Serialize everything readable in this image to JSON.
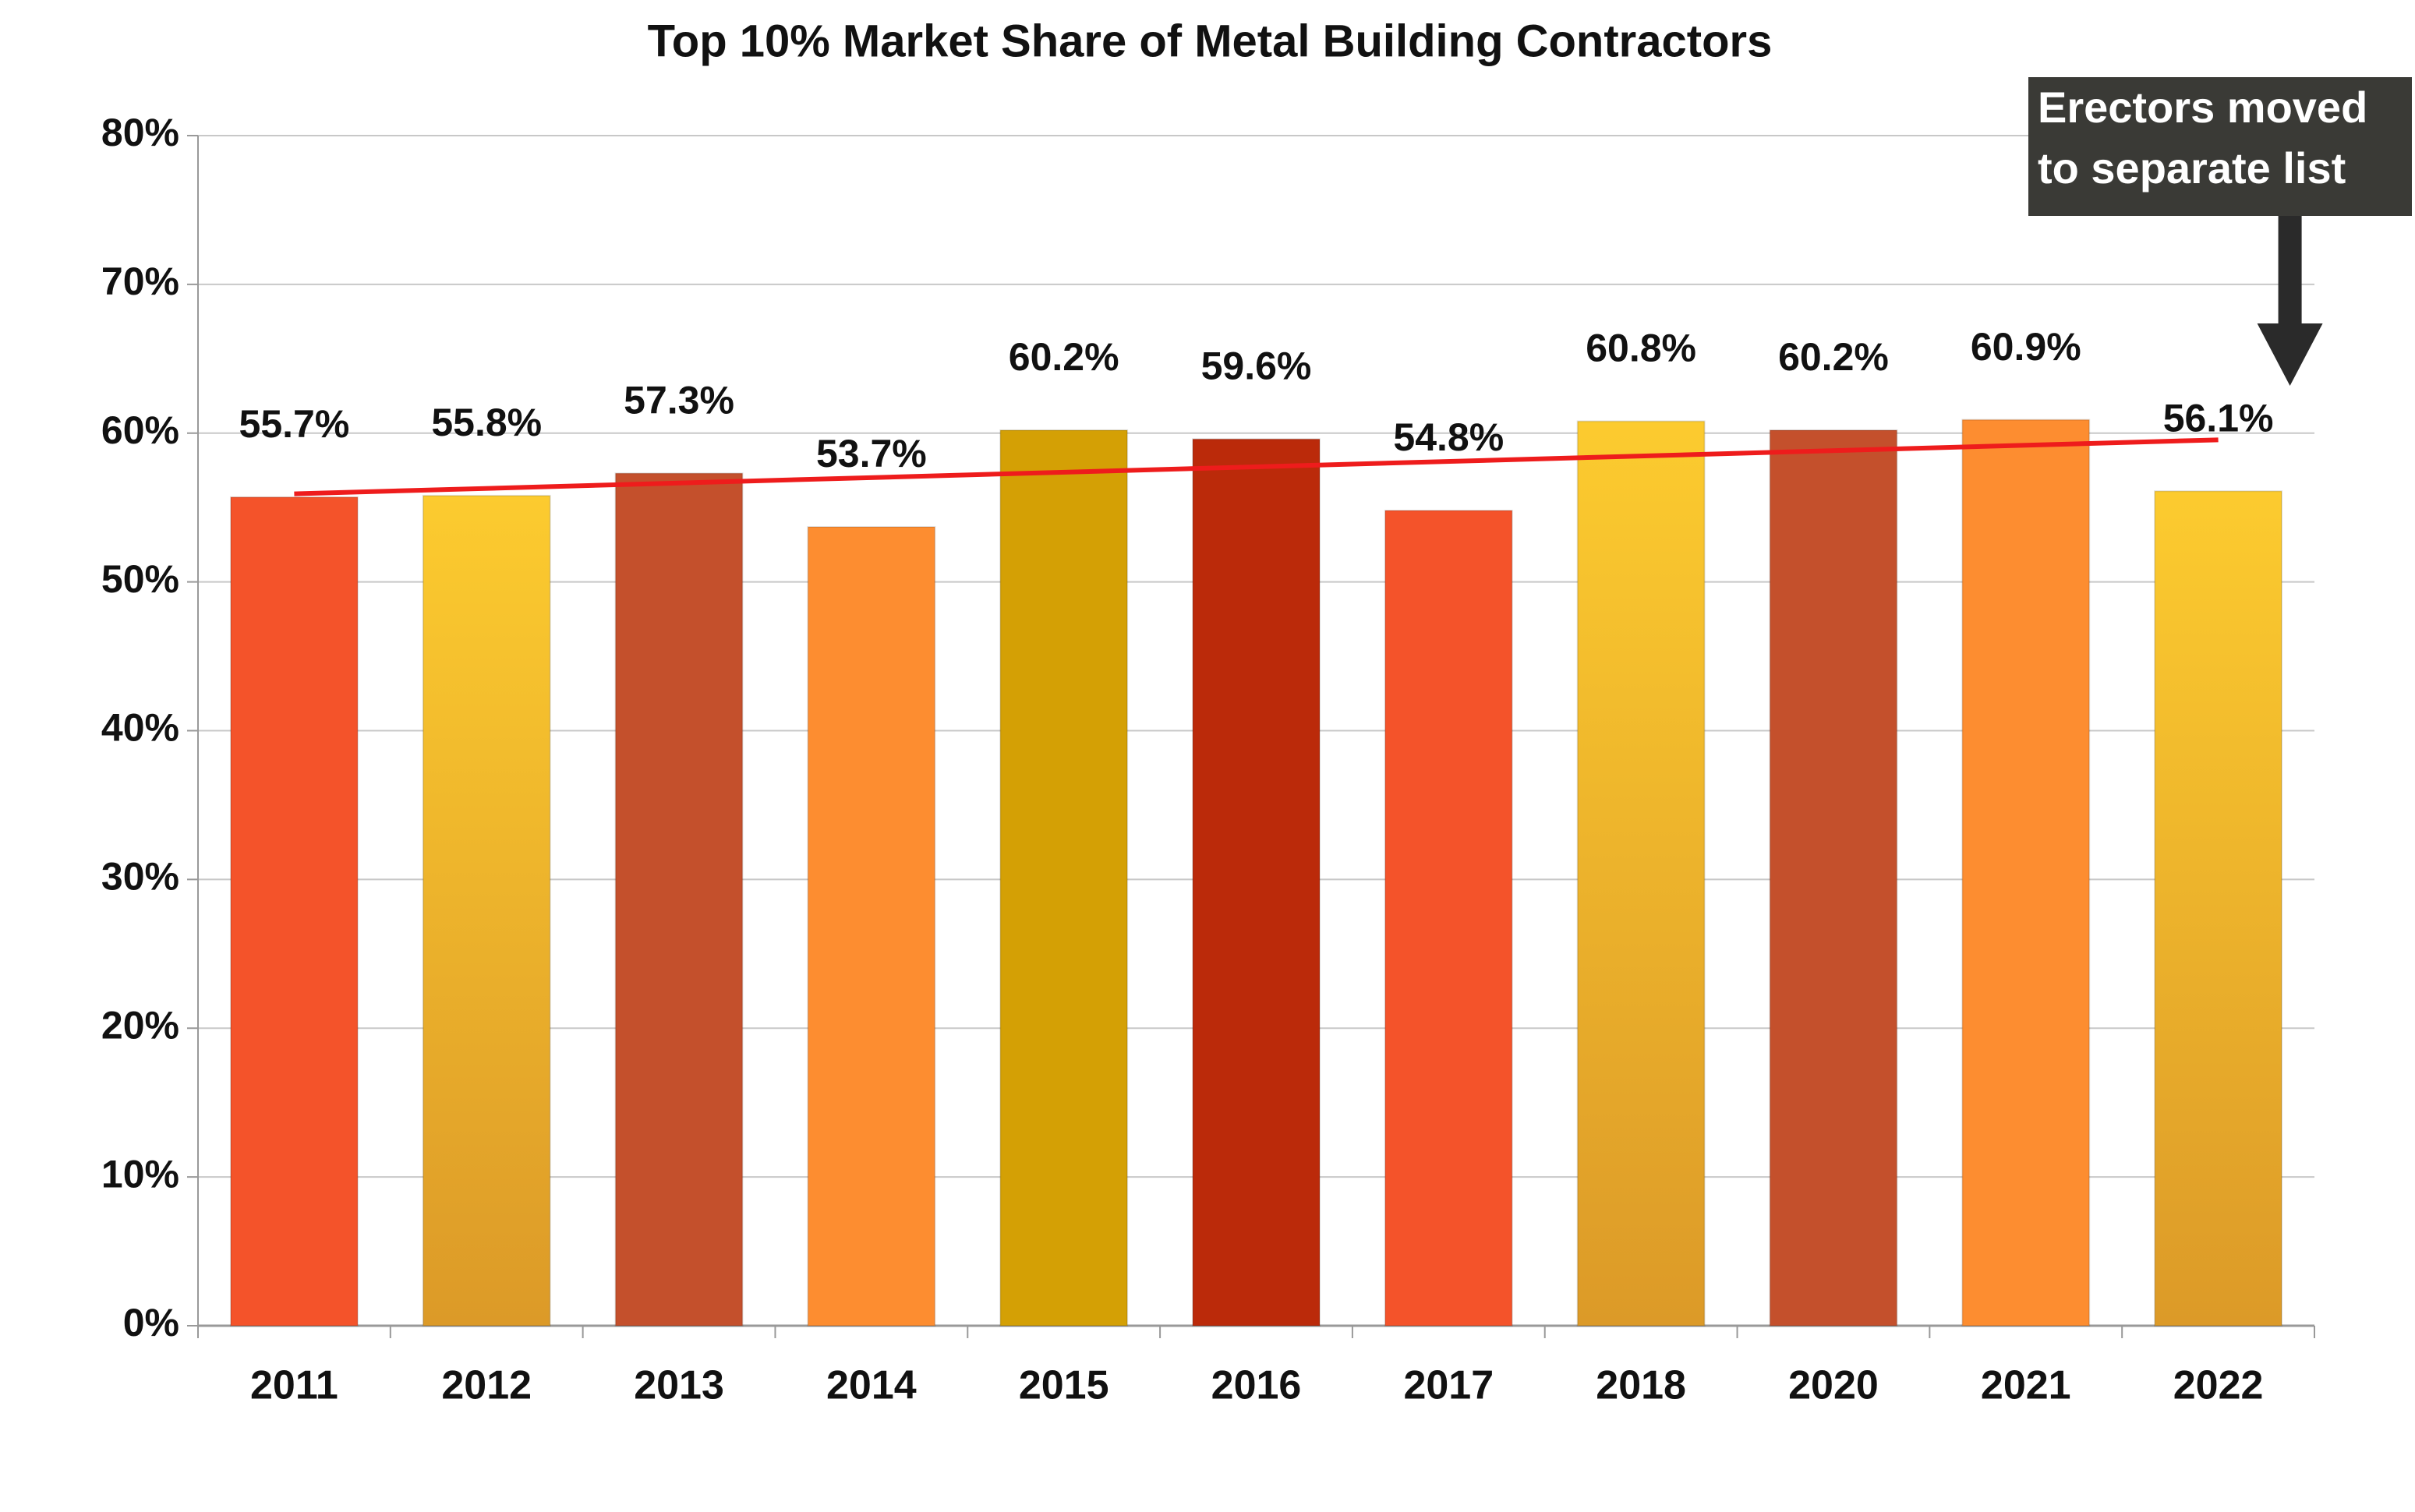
{
  "chart_data": {
    "type": "bar",
    "title": "Top 10% Market Share of Metal Building Contractors",
    "categories": [
      "2011",
      "2012",
      "2013",
      "2014",
      "2015",
      "2016",
      "2017",
      "2018",
      "2020",
      "2021",
      "2022"
    ],
    "values": [
      55.7,
      55.8,
      57.3,
      53.7,
      60.2,
      59.6,
      54.8,
      60.8,
      60.2,
      60.9,
      56.1
    ],
    "value_labels": [
      "55.7%",
      "55.8%",
      "57.3%",
      "53.7%",
      "60.2%",
      "59.6%",
      "54.8%",
      "60.8%",
      "60.2%",
      "60.9%",
      "56.1%"
    ],
    "colors": [
      "#f4532a",
      "#fccb2f",
      "#c4502c",
      "#fd8d30",
      "#d4a005",
      "#bb2a0a",
      "#f4532a",
      "#fccb2f",
      "#c4502c",
      "#fd8d30",
      "#fccb2f"
    ],
    "gradient_colors": [
      null,
      "#dc9a28",
      null,
      null,
      null,
      null,
      null,
      "#dc9a28",
      null,
      null,
      "#dc9a28"
    ],
    "ylim": [
      0,
      80
    ],
    "yticks": [
      {
        "value": 0,
        "label": "0%"
      },
      {
        "value": 10,
        "label": "10%"
      },
      {
        "value": 20,
        "label": "20%"
      },
      {
        "value": 30,
        "label": "30%"
      },
      {
        "value": 40,
        "label": "40%"
      },
      {
        "value": 50,
        "label": "50%"
      },
      {
        "value": 60,
        "label": "60%"
      },
      {
        "value": 70,
        "label": "70%"
      },
      {
        "value": 80,
        "label": "80%"
      }
    ],
    "grid": true,
    "trendline": true,
    "trendline_color": "#ee1c1c",
    "annotation": {
      "lines": [
        "Erectors moved",
        "to separate list"
      ],
      "category": 10
    }
  }
}
